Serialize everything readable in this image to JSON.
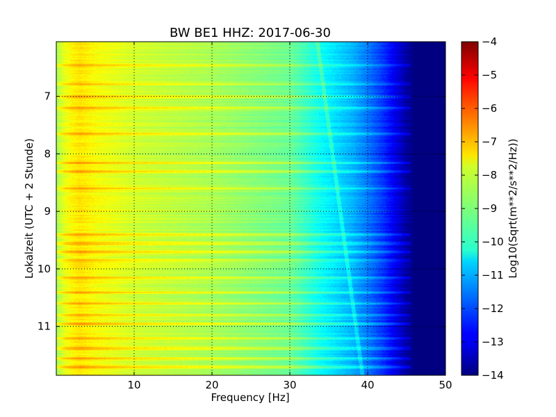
{
  "chart_data": {
    "type": "heatmap",
    "title": "BW BE1 HHZ: 2017-06-30",
    "xlabel": "Frequency [Hz]",
    "ylabel": "Lokalzeit (UTC + 2 Stunde)",
    "xlim": [
      0,
      50
    ],
    "ylim": [
      11.85,
      6.05
    ],
    "x_ticks": [
      10,
      20,
      30,
      40,
      50
    ],
    "x_tick_labels": [
      "10",
      "20",
      "30",
      "40",
      "50"
    ],
    "y_ticks": [
      7,
      8,
      9,
      10,
      11
    ],
    "y_tick_labels": [
      "7",
      "8",
      "9",
      "10",
      "11"
    ],
    "grid": true,
    "colormap": "jet",
    "colorbar": {
      "label": "Log10(Sqrt(m**2/s**2/Hz))",
      "range": [
        -14,
        -4
      ],
      "ticks": [
        -4,
        -5,
        -6,
        -7,
        -8,
        -9,
        -10,
        -11,
        -12,
        -13,
        -14
      ],
      "tick_labels": [
        "−4",
        "−5",
        "−6",
        "−7",
        "−8",
        "−9",
        "−10",
        "−11",
        "−12",
        "−13",
        "−14"
      ]
    },
    "spectrum_profile": {
      "frequency_hz": [
        0,
        1,
        2,
        3,
        5,
        10,
        15,
        20,
        25,
        30,
        32,
        34,
        36,
        38,
        40,
        42,
        44,
        45,
        46,
        50
      ],
      "level": [
        -8.6,
        -8.0,
        -7.7,
        -7.5,
        -7.8,
        -8.2,
        -8.4,
        -8.6,
        -8.9,
        -9.2,
        -9.7,
        -10.2,
        -10.6,
        -11.0,
        -11.6,
        -12.3,
        -13.2,
        -13.7,
        -14,
        -14
      ]
    },
    "bright_bands_hour": [
      6.45,
      6.78,
      7.0,
      7.2,
      7.65,
      8.15,
      8.3,
      8.6,
      9.4,
      9.55,
      9.7,
      9.85,
      10.15,
      10.4,
      10.6,
      10.8,
      10.95,
      11.2,
      11.38,
      11.55,
      11.7
    ]
  }
}
